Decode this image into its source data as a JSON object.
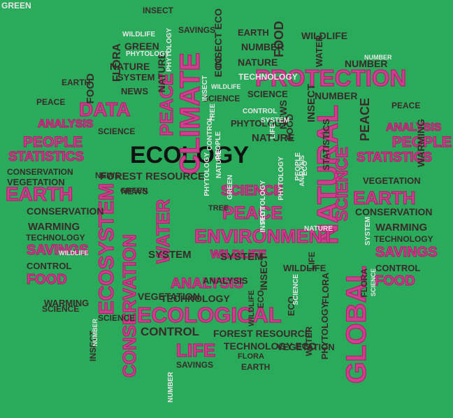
{
  "words": [
    {
      "t": "ECOLOGY",
      "c": "blk"
    },
    {
      "t": "PROTECTION",
      "c": "pk"
    },
    {
      "t": "CLIMATE",
      "c": "pk"
    },
    {
      "t": "DATA",
      "c": "pk"
    },
    {
      "t": "NATURAL",
      "c": "pk"
    },
    {
      "t": "ENVIRONMENT",
      "c": "pk"
    },
    {
      "t": "ECOLOGICAL",
      "c": "pk"
    },
    {
      "t": "ECOSYSTEM",
      "c": "pk"
    },
    {
      "t": "CONSERVATION",
      "c": "pk"
    },
    {
      "t": "GLOBAL",
      "c": "pk"
    },
    {
      "t": "EARTH",
      "c": "pk"
    },
    {
      "t": "EARTH",
      "c": "pk"
    },
    {
      "t": "PEOPLE",
      "c": "pk"
    },
    {
      "t": "PEOPLE",
      "c": "pk"
    },
    {
      "t": "PEACE",
      "c": "pk"
    },
    {
      "t": "PEACE",
      "c": "pk"
    },
    {
      "t": "WATER",
      "c": "pk"
    },
    {
      "t": "LIFE",
      "c": "pk"
    },
    {
      "t": "SAVINGS",
      "c": "pk"
    },
    {
      "t": "SAVINGS",
      "c": "pk"
    },
    {
      "t": "ANALYSIS",
      "c": "pk"
    },
    {
      "t": "ANALYSIS",
      "c": "pk"
    },
    {
      "t": "ANALYSIS",
      "c": "pk"
    },
    {
      "t": "STATISTICS",
      "c": "pk"
    },
    {
      "t": "STATISTICS",
      "c": "pk"
    },
    {
      "t": "FOOD",
      "c": "pk"
    },
    {
      "t": "FOOD",
      "c": "pk"
    },
    {
      "t": "SCIENCE",
      "c": "pk"
    },
    {
      "t": "SCIENCE",
      "c": "pk"
    },
    {
      "t": "WILDLIFE",
      "c": "pk"
    },
    {
      "t": "FOREST RESOURCE",
      "c": "dk"
    },
    {
      "t": "FOREST RESOURCE",
      "c": "dk"
    },
    {
      "t": "CONSERVATION",
      "c": "dk"
    },
    {
      "t": "CONSERVATION",
      "c": "dk"
    },
    {
      "t": "CONSERVATION",
      "c": "dk"
    },
    {
      "t": "VEGETATION",
      "c": "dk"
    },
    {
      "t": "VEGETATION",
      "c": "dk"
    },
    {
      "t": "WARMING",
      "c": "dk"
    },
    {
      "t": "WARMING",
      "c": "dk"
    },
    {
      "t": "WARMING",
      "c": "dk"
    },
    {
      "t": "TECHNOLOGY",
      "c": "dk"
    },
    {
      "t": "TECHNOLOGY",
      "c": "dk"
    },
    {
      "t": "TECHNOLOGY",
      "c": "dk"
    },
    {
      "t": "CONTROL",
      "c": "dk"
    },
    {
      "t": "CONTROL",
      "c": "dk"
    },
    {
      "t": "CONTROL",
      "c": "dk"
    },
    {
      "t": "SYSTEM",
      "c": "dk"
    },
    {
      "t": "NATURE",
      "c": "dk"
    },
    {
      "t": "NATURE",
      "c": "dk"
    },
    {
      "t": "NUMBER",
      "c": "dk"
    },
    {
      "t": "STATISTICS",
      "c": "dk"
    },
    {
      "t": "WARMING",
      "c": "dk"
    },
    {
      "t": "EARTH",
      "c": "dk"
    },
    {
      "t": "EARTH",
      "c": "dk"
    },
    {
      "t": "EARTH",
      "c": "dk"
    },
    {
      "t": "FLORA",
      "c": "dk"
    },
    {
      "t": "INSECT",
      "c": "dk"
    },
    {
      "t": "INSECT ECO",
      "c": "dk"
    },
    {
      "t": "SAVINGS",
      "c": "dk"
    },
    {
      "t": "SAVINGS",
      "c": "dk"
    },
    {
      "t": "FOOD",
      "c": "dk"
    },
    {
      "t": "FOOD",
      "c": "dk"
    },
    {
      "t": "WILDLIFE",
      "c": "dk"
    },
    {
      "t": "INSECT",
      "c": "dk"
    },
    {
      "t": "GREEN",
      "c": "dk"
    },
    {
      "t": "NATURE",
      "c": "dk"
    },
    {
      "t": "SYSTEM",
      "c": "dk"
    },
    {
      "t": "NEWS",
      "c": "dk"
    },
    {
      "t": "NEWS",
      "c": "dk"
    },
    {
      "t": "SCIENCE",
      "c": "dk"
    },
    {
      "t": "PEACE",
      "c": "dk"
    },
    {
      "t": "PEACE",
      "c": "dk"
    },
    {
      "t": "PEACE",
      "c": "dk"
    },
    {
      "t": "SYSTEM",
      "c": "dk"
    },
    {
      "t": "WILDLIFE",
      "c": "dk"
    },
    {
      "t": "VEGETATION",
      "c": "dk"
    },
    {
      "t": "VEGETATION",
      "c": "dk"
    },
    {
      "t": "TECHNOLOGY ECO",
      "c": "dk"
    },
    {
      "t": "FLORA",
      "c": "dk"
    },
    {
      "t": "WATER",
      "c": "dk"
    },
    {
      "t": "NATURE",
      "c": "dk"
    },
    {
      "t": "NUMBER",
      "c": "dk"
    },
    {
      "t": "SCIENCE",
      "c": "dk"
    },
    {
      "t": "PHYTOLOGY",
      "c": "dk"
    },
    {
      "t": "NEWS",
      "c": "dk"
    },
    {
      "t": "INSECT",
      "c": "dk"
    },
    {
      "t": "FOOD",
      "c": "dk"
    },
    {
      "t": "NUMBER",
      "c": "dk"
    },
    {
      "t": "ECO",
      "c": "dk"
    },
    {
      "t": "LIFE",
      "c": "dk"
    },
    {
      "t": "FLORA",
      "c": "dk"
    },
    {
      "t": "SCIENCE",
      "c": "dk"
    },
    {
      "t": "PHYTOLOGY",
      "c": "dk"
    },
    {
      "t": "SCIENCE",
      "c": "dk"
    },
    {
      "t": "ECO",
      "c": "dk"
    },
    {
      "t": "ANALYSIS",
      "c": "dk"
    },
    {
      "t": "WILDLIFE",
      "c": "dk"
    },
    {
      "t": "INSECT",
      "c": "dk"
    },
    {
      "t": "GREEN",
      "c": "dk"
    },
    {
      "t": "NEWS",
      "c": "dk"
    },
    {
      "t": "TREE",
      "c": "dk"
    },
    {
      "t": "ECO",
      "c": "dk"
    },
    {
      "t": "WATER",
      "c": "dk"
    },
    {
      "t": "FLORA",
      "c": "dk"
    },
    {
      "t": "SCIENCE",
      "c": "dk"
    },
    {
      "t": "TECHNOLOGY",
      "c": "wh"
    },
    {
      "t": "WILDLIFE",
      "c": "wh"
    },
    {
      "t": "PHYTOLOGY",
      "c": "wh"
    },
    {
      "t": "PHYTOLOGY",
      "c": "wh"
    },
    {
      "t": "NUMBER",
      "c": "wh"
    },
    {
      "t": "SYSTEM",
      "c": "wh"
    },
    {
      "t": "CONTROL",
      "c": "wh"
    },
    {
      "t": "SCIENCE",
      "c": "wh"
    },
    {
      "t": "WILDLIFE",
      "c": "wh"
    },
    {
      "t": "INSECT",
      "c": "wh"
    },
    {
      "t": "TREE",
      "c": "wh"
    },
    {
      "t": "LIFE",
      "c": "wh"
    },
    {
      "t": "PHYTOLOGY",
      "c": "wh"
    },
    {
      "t": "NATURE",
      "c": "wh"
    },
    {
      "t": "PEOPLE",
      "c": "wh"
    },
    {
      "t": "NATURE",
      "c": "wh"
    },
    {
      "t": "CONTROL",
      "c": "wh"
    },
    {
      "t": "NUMBER",
      "c": "wh"
    },
    {
      "t": "GREEN",
      "c": "wh"
    },
    {
      "t": "SCIENCE",
      "c": "wh"
    },
    {
      "t": "ANALYSIS",
      "c": "wh"
    },
    {
      "t": "PHYTOLOGY",
      "c": "wh"
    },
    {
      "t": "ECO",
      "c": "wh"
    },
    {
      "t": "WILDLIFE",
      "c": "wh"
    },
    {
      "t": "PHYTOLOGY",
      "c": "wh"
    },
    {
      "t": "PEOPLE",
      "c": "wh"
    },
    {
      "t": "INSECT",
      "c": "wh"
    },
    {
      "t": "SYSTEM",
      "c": "wh"
    },
    {
      "t": "NUMBER",
      "c": "wh"
    },
    {
      "t": "GREEN",
      "c": "wh"
    }
  ]
}
